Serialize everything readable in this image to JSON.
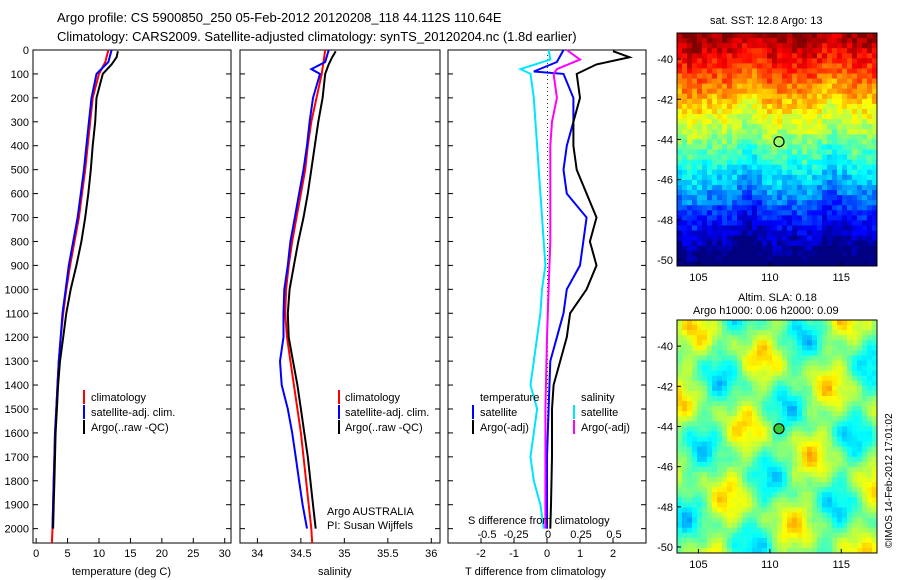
{
  "header": {
    "line1": "Argo profile: CS 5900850_250 05-Feb-2012 20120208_118 44.112S 110.64E",
    "line2": "Climatology: CARS2009. Satellite-adjusted climatology: synTS_20120204.nc (1.8d earlier)"
  },
  "side_label": "©IMOS 14-Feb-2012 17:01:02",
  "colors": {
    "climatology": "#ff0000",
    "satellite": "#0000ff",
    "argo": "#000000",
    "salinity_satellite": "#00e5ff",
    "salinity_argo": "#ff00ff"
  },
  "chart_data": [
    {
      "id": "temperature",
      "type": "line",
      "xlabel": "temperature (deg C)",
      "ylabel": "",
      "xlim": [
        -0.5,
        31
      ],
      "ylim": [
        2060,
        0
      ],
      "x_ticks": [
        0,
        5,
        10,
        15,
        20,
        25,
        30
      ],
      "y_ticks": [
        0,
        100,
        200,
        300,
        400,
        500,
        600,
        700,
        800,
        900,
        1000,
        1100,
        1200,
        1300,
        1400,
        1500,
        1600,
        1700,
        1800,
        1900,
        2000
      ],
      "legend": [
        "climatology",
        "satellite-adj. clim.",
        "Argo(..raw -QC)"
      ],
      "series": [
        {
          "name": "climatology",
          "color": "#ff0000",
          "points": [
            [
              11.5,
              0
            ],
            [
              11.0,
              50
            ],
            [
              10.0,
              100
            ],
            [
              9.0,
              200
            ],
            [
              8.6,
              300
            ],
            [
              8.2,
              400
            ],
            [
              7.8,
              500
            ],
            [
              7.3,
              600
            ],
            [
              6.8,
              700
            ],
            [
              6.1,
              800
            ],
            [
              5.4,
              900
            ],
            [
              4.8,
              1000
            ],
            [
              4.3,
              1100
            ],
            [
              3.9,
              1200
            ],
            [
              3.6,
              1300
            ],
            [
              3.4,
              1400
            ],
            [
              3.2,
              1500
            ],
            [
              3.0,
              1600
            ],
            [
              2.9,
              1700
            ],
            [
              2.8,
              1800
            ],
            [
              2.7,
              1900
            ],
            [
              2.6,
              2000
            ],
            [
              2.5,
              2060
            ]
          ]
        },
        {
          "name": "satellite-adj. clim.",
          "color": "#0000ff",
          "points": [
            [
              12.0,
              0
            ],
            [
              11.5,
              50
            ],
            [
              9.6,
              100
            ],
            [
              8.8,
              200
            ],
            [
              8.4,
              300
            ],
            [
              8.0,
              400
            ],
            [
              7.6,
              500
            ],
            [
              7.1,
              600
            ],
            [
              6.6,
              700
            ],
            [
              5.9,
              800
            ],
            [
              5.2,
              900
            ],
            [
              4.7,
              1000
            ],
            [
              4.2,
              1100
            ],
            [
              3.9,
              1200
            ],
            [
              3.6,
              1300
            ],
            [
              3.4,
              1400
            ],
            [
              3.2,
              1500
            ],
            [
              3.0,
              1600
            ],
            [
              2.9,
              1700
            ],
            [
              2.8,
              1800
            ],
            [
              2.7,
              1900
            ],
            [
              2.6,
              2000
            ]
          ]
        },
        {
          "name": "Argo(..raw -QC)",
          "color": "#000000",
          "points": [
            [
              13.0,
              5
            ],
            [
              12.8,
              30
            ],
            [
              12.0,
              60
            ],
            [
              10.6,
              100
            ],
            [
              9.6,
              200
            ],
            [
              9.4,
              300
            ],
            [
              9.0,
              400
            ],
            [
              8.7,
              500
            ],
            [
              8.3,
              600
            ],
            [
              7.8,
              700
            ],
            [
              7.2,
              800
            ],
            [
              6.4,
              900
            ],
            [
              5.5,
              1000
            ],
            [
              4.8,
              1100
            ],
            [
              4.3,
              1200
            ],
            [
              3.8,
              1300
            ],
            [
              3.5,
              1400
            ],
            [
              3.3,
              1500
            ],
            [
              3.1,
              1600
            ],
            [
              3.0,
              1700
            ],
            [
              2.9,
              1800
            ],
            [
              2.8,
              1900
            ],
            [
              2.7,
              2000
            ]
          ]
        }
      ]
    },
    {
      "id": "salinity",
      "type": "line",
      "xlabel": "salinity",
      "ylabel": "",
      "xlim": [
        33.8,
        36.1
      ],
      "ylim": [
        2060,
        0
      ],
      "x_ticks": [
        34,
        34.5,
        35,
        35.5,
        36
      ],
      "legend": [
        "climatology",
        "satellite-adj. clim.",
        "Argo(..raw -QC)"
      ],
      "annotation": [
        "Argo AUSTRALIA",
        "PI: Susan Wijffels"
      ],
      "series": [
        {
          "name": "climatology",
          "color": "#ff0000",
          "points": [
            [
              34.78,
              0
            ],
            [
              34.76,
              50
            ],
            [
              34.74,
              100
            ],
            [
              34.68,
              200
            ],
            [
              34.62,
              300
            ],
            [
              34.58,
              400
            ],
            [
              34.55,
              500
            ],
            [
              34.5,
              600
            ],
            [
              34.45,
              700
            ],
            [
              34.4,
              800
            ],
            [
              34.36,
              900
            ],
            [
              34.33,
              1000
            ],
            [
              34.32,
              1100
            ],
            [
              34.34,
              1200
            ],
            [
              34.38,
              1300
            ],
            [
              34.42,
              1400
            ],
            [
              34.46,
              1500
            ],
            [
              34.5,
              1600
            ],
            [
              34.53,
              1700
            ],
            [
              34.56,
              1800
            ],
            [
              34.59,
              1900
            ],
            [
              34.62,
              2000
            ],
            [
              34.63,
              2060
            ]
          ]
        },
        {
          "name": "satellite-adj. clim.",
          "color": "#0000ff",
          "points": [
            [
              34.82,
              0
            ],
            [
              34.78,
              50
            ],
            [
              34.62,
              80
            ],
            [
              34.72,
              100
            ],
            [
              34.64,
              200
            ],
            [
              34.6,
              300
            ],
            [
              34.57,
              400
            ],
            [
              34.53,
              500
            ],
            [
              34.48,
              600
            ],
            [
              34.43,
              700
            ],
            [
              34.38,
              800
            ],
            [
              34.35,
              900
            ],
            [
              34.31,
              1000
            ],
            [
              34.3,
              1100
            ],
            [
              34.3,
              1200
            ],
            [
              34.26,
              1300
            ],
            [
              34.28,
              1400
            ],
            [
              34.35,
              1500
            ],
            [
              34.4,
              1600
            ],
            [
              34.44,
              1700
            ],
            [
              34.48,
              1800
            ],
            [
              34.52,
              1900
            ],
            [
              34.57,
              2000
            ]
          ]
        },
        {
          "name": "Argo(..raw -QC)",
          "color": "#000000",
          "points": [
            [
              34.9,
              5
            ],
            [
              34.86,
              30
            ],
            [
              34.82,
              60
            ],
            [
              34.78,
              100
            ],
            [
              34.75,
              200
            ],
            [
              34.7,
              300
            ],
            [
              34.66,
              400
            ],
            [
              34.62,
              500
            ],
            [
              34.58,
              600
            ],
            [
              34.53,
              700
            ],
            [
              34.47,
              800
            ],
            [
              34.42,
              900
            ],
            [
              34.37,
              1000
            ],
            [
              34.35,
              1100
            ],
            [
              34.36,
              1200
            ],
            [
              34.41,
              1300
            ],
            [
              34.46,
              1400
            ],
            [
              34.5,
              1500
            ],
            [
              34.54,
              1600
            ],
            [
              34.58,
              1700
            ],
            [
              34.61,
              1800
            ],
            [
              34.64,
              1900
            ],
            [
              34.67,
              2000
            ]
          ]
        }
      ]
    },
    {
      "id": "difference",
      "type": "line",
      "xlabel": "T difference from climatology",
      "top_label": "S difference from climatology",
      "xlim": [
        -3,
        3
      ],
      "ylim": [
        2060,
        0
      ],
      "x_ticks": [
        -2,
        -1,
        0,
        1,
        2
      ],
      "s_ticks": [
        "-0.5",
        "-0.25",
        "0",
        "0.25",
        "0.5"
      ],
      "legend": {
        "temperature": [
          "temperature",
          "satellite",
          "Argo(-adj)"
        ],
        "salinity": [
          "salinity",
          "satellite",
          "Argo(-adj)"
        ]
      },
      "series": [
        {
          "name": "T satellite",
          "color": "#0000ff",
          "points": [
            [
              0.5,
              0
            ],
            [
              0.3,
              50
            ],
            [
              -0.4,
              90
            ],
            [
              0.5,
              100
            ],
            [
              0.8,
              200
            ],
            [
              0.8,
              300
            ],
            [
              0.6,
              400
            ],
            [
              0.5,
              500
            ],
            [
              0.6,
              600
            ],
            [
              1.2,
              700
            ],
            [
              1.1,
              800
            ],
            [
              1.0,
              900
            ],
            [
              0.6,
              1000
            ],
            [
              0.5,
              1100
            ],
            [
              0.3,
              1200
            ],
            [
              0.1,
              1300
            ],
            [
              0.05,
              1500
            ],
            [
              0.0,
              1700
            ],
            [
              0.0,
              2000
            ]
          ]
        },
        {
          "name": "T Argo(-adj)",
          "color": "#000000",
          "points": [
            [
              2.0,
              5
            ],
            [
              2.5,
              30
            ],
            [
              1.5,
              60
            ],
            [
              0.9,
              100
            ],
            [
              1.0,
              200
            ],
            [
              0.8,
              300
            ],
            [
              0.8,
              400
            ],
            [
              0.9,
              500
            ],
            [
              1.2,
              600
            ],
            [
              1.5,
              700
            ],
            [
              1.3,
              800
            ],
            [
              1.5,
              900
            ],
            [
              1.2,
              1000
            ],
            [
              0.7,
              1100
            ],
            [
              0.6,
              1200
            ],
            [
              0.4,
              1300
            ],
            [
              0.2,
              1400
            ],
            [
              0.15,
              1500
            ],
            [
              0.15,
              1700
            ],
            [
              0.12,
              1900
            ],
            [
              0.1,
              2000
            ]
          ]
        },
        {
          "name": "S satellite",
          "color": "#00e5ff",
          "points": [
            [
              0.05,
              0
            ],
            [
              0.1,
              40
            ],
            [
              -0.8,
              80
            ],
            [
              -0.5,
              100
            ],
            [
              -0.4,
              200
            ],
            [
              -0.3,
              400
            ],
            [
              -0.2,
              600
            ],
            [
              -0.1,
              800
            ],
            [
              -0.05,
              900
            ],
            [
              -0.15,
              1000
            ],
            [
              -0.2,
              1100
            ],
            [
              -0.3,
              1200
            ],
            [
              -0.4,
              1300
            ],
            [
              -0.5,
              1400
            ],
            [
              -0.3,
              1500
            ],
            [
              -0.4,
              1600
            ],
            [
              -0.5,
              1700
            ],
            [
              -0.4,
              1800
            ],
            [
              -0.2,
              1900
            ],
            [
              -0.1,
              2000
            ]
          ]
        },
        {
          "name": "S Argo(-adj)",
          "color": "#ff00ff",
          "points": [
            [
              0.6,
              0
            ],
            [
              1.0,
              40
            ],
            [
              0.3,
              80
            ],
            [
              0.2,
              100
            ],
            [
              0.3,
              200
            ],
            [
              0.15,
              300
            ],
            [
              0.1,
              400
            ],
            [
              0.1,
              600
            ],
            [
              0.1,
              800
            ],
            [
              0.05,
              1000
            ],
            [
              0.0,
              1200
            ],
            [
              -0.05,
              1500
            ],
            [
              -0.05,
              1800
            ],
            [
              -0.05,
              2000
            ]
          ]
        }
      ]
    },
    {
      "id": "sst_map",
      "type": "heatmap",
      "title": "sat. SST: 12.8 Argo: 13",
      "x_ticks": [
        105,
        110,
        115
      ],
      "y_ticks": [
        -40,
        -42,
        -44,
        -46,
        -48,
        -50
      ],
      "xlim": [
        103.5,
        117.5
      ],
      "ylim": [
        -50.3,
        -38.7
      ],
      "marker": {
        "lon": 110.64,
        "lat": -44.112
      }
    },
    {
      "id": "sla_map",
      "type": "heatmap",
      "title": "Altim. SLA: 0.18",
      "subtitle": "Argo h1000: 0.06 h2000: 0.09",
      "x_ticks": [
        105,
        110,
        115
      ],
      "y_ticks": [
        -40,
        -42,
        -44,
        -46,
        -48,
        -50
      ],
      "xlim": [
        103.5,
        117.5
      ],
      "ylim": [
        -50.3,
        -38.7
      ],
      "marker": {
        "lon": 110.64,
        "lat": -44.112
      }
    }
  ]
}
